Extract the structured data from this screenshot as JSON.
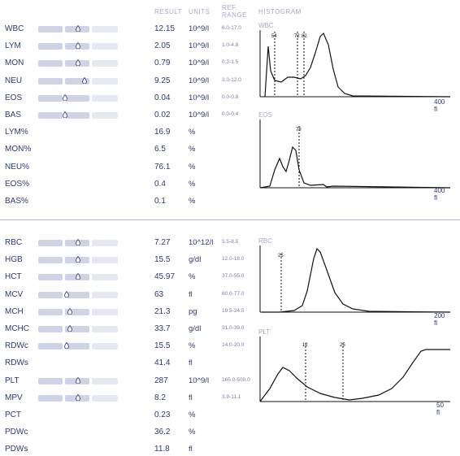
{
  "headers": {
    "result": "RESULT",
    "units": "UNITS",
    "ref_line1": "REF.",
    "ref_line2": "RANGE",
    "histogram": "HISTOGRAM"
  },
  "wbc_rows": [
    {
      "name": "WBC",
      "result": "12.15",
      "unit": "10^9/l",
      "ref": "6.0-17.0",
      "has_bar": true,
      "level": 0.5
    },
    {
      "name": "LYM",
      "result": "2.05",
      "unit": "10^9/l",
      "ref": "1.0-4.8",
      "has_bar": true,
      "level": 0.5
    },
    {
      "name": "MON",
      "result": "0.79",
      "unit": "10^9/l",
      "ref": "0.2-1.5",
      "has_bar": true,
      "level": 0.5
    },
    {
      "name": "NEU",
      "result": "9.25",
      "unit": "10^9/l",
      "ref": "3.0-12.0",
      "has_bar": true,
      "level": 0.58
    },
    {
      "name": "EOS",
      "result": "0.04",
      "unit": "10^9/l",
      "ref": "0.0-0.8",
      "has_bar": true,
      "level": 0.34
    },
    {
      "name": "BAS",
      "result": "0.02",
      "unit": "10^9/l",
      "ref": "0.0-0.4",
      "has_bar": true,
      "level": 0.34
    },
    {
      "name": "LYM%",
      "result": "16.9",
      "unit": "%",
      "ref": "",
      "has_bar": false
    },
    {
      "name": "MON%",
      "result": "6.5",
      "unit": "%",
      "ref": "",
      "has_bar": false
    },
    {
      "name": "NEU%",
      "result": "76.1",
      "unit": "%",
      "ref": "",
      "has_bar": false
    },
    {
      "name": "EOS%",
      "result": "0.4",
      "unit": "%",
      "ref": "",
      "has_bar": false
    },
    {
      "name": "BAS%",
      "result": "0.1",
      "unit": "%",
      "ref": "",
      "has_bar": false
    }
  ],
  "rbc_rows": [
    {
      "name": "RBC",
      "result": "7.27",
      "unit": "10^12/l",
      "ref": "5.5-8.5",
      "has_bar": true,
      "level": 0.5
    },
    {
      "name": "HGB",
      "result": "15.5",
      "unit": "g/dl",
      "ref": "12.0-18.0",
      "has_bar": true,
      "level": 0.5
    },
    {
      "name": "HCT",
      "result": "45.97",
      "unit": "%",
      "ref": "37.0-55.0",
      "has_bar": true,
      "level": 0.5
    },
    {
      "name": "MCV",
      "result": "63",
      "unit": "fl",
      "ref": "60.0-77.0",
      "has_bar": true,
      "level": 0.36
    },
    {
      "name": "MCH",
      "result": "21.3",
      "unit": "pg",
      "ref": "19.5-24.5",
      "has_bar": true,
      "level": 0.4
    },
    {
      "name": "MCHC",
      "result": "33.7",
      "unit": "g/dl",
      "ref": "31.0-39.0",
      "has_bar": true,
      "level": 0.4
    },
    {
      "name": "RDWc",
      "result": "15.5",
      "unit": "%",
      "ref": "14.0-20.0",
      "has_bar": true,
      "level": 0.36
    },
    {
      "name": "RDWs",
      "result": "41.4",
      "unit": "fl",
      "ref": "",
      "has_bar": false
    },
    {
      "name": "PLT",
      "result": "287",
      "unit": "10^9/l",
      "ref": "165.0-500.0",
      "has_bar": true,
      "level": 0.5
    },
    {
      "name": "MPV",
      "result": "8.2",
      "unit": "fl",
      "ref": "3.9-11.1",
      "has_bar": true,
      "level": 0.5
    },
    {
      "name": "PCT",
      "result": "0.23",
      "unit": "%",
      "ref": "",
      "has_bar": false
    },
    {
      "name": "PDWc",
      "result": "36.2",
      "unit": "%",
      "ref": "",
      "has_bar": false
    },
    {
      "name": "PDWs",
      "result": "11.8",
      "unit": "fl",
      "ref": "",
      "has_bar": false
    }
  ],
  "histograms": {
    "wbc": {
      "label": "WBC",
      "axis_max": "400 fl",
      "marker_labels": [
        "54",
        "72",
        "82"
      ]
    },
    "eos": {
      "label": "EOS",
      "axis_max": "400 fl",
      "marker_labels": [
        "78"
      ]
    },
    "rbc": {
      "label": "RBC",
      "axis_max": "200 fl",
      "marker_labels": [
        "25"
      ]
    },
    "plt": {
      "label": "PLT",
      "axis_max": "50 fl",
      "marker_labels": [
        "12",
        "25"
      ]
    }
  },
  "colors": {
    "text": "#2e3a7a",
    "bar": "#ced3e6",
    "bar_light": "#e7e9f2",
    "header": "#a6aac4"
  }
}
